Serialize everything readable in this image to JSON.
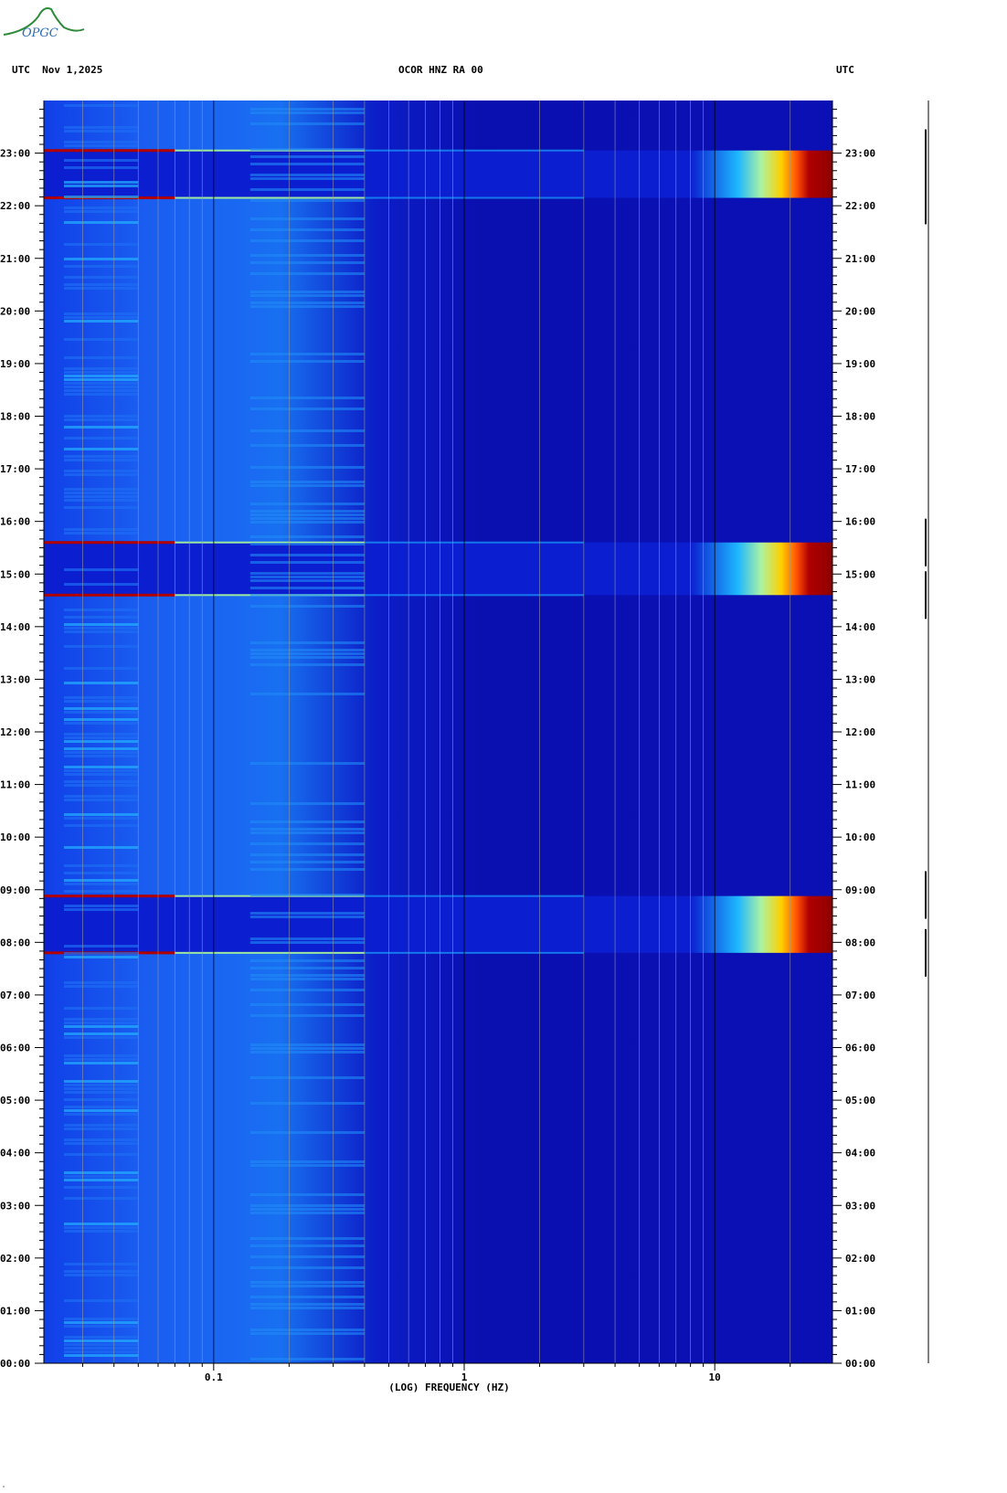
{
  "header": {
    "left_label": "UTC  Nov 1,2025",
    "center_label": "OCOR HNZ RA 00",
    "right_label": "UTC"
  },
  "logo": {
    "text": "OPGC",
    "icon": "volcano-logo-icon"
  },
  "footer_mark": "ᵃ",
  "chart_data": {
    "type": "heatmap",
    "title": "OCOR HNZ RA 00",
    "xlabel": "(LOG) FREQUENCY (HZ)",
    "ylabel": "UTC",
    "x_scale": "log",
    "x_range_hz": [
      0.021,
      29.5
    ],
    "x_tick_labels": [
      {
        "value": 0.1,
        "label": "0.1"
      },
      {
        "value": 1,
        "label": "1"
      },
      {
        "value": 10,
        "label": "10"
      }
    ],
    "y_range_hours": [
      0,
      24
    ],
    "y_tick_labels": [
      "00:00",
      "01:00",
      "02:00",
      "03:00",
      "04:00",
      "05:00",
      "06:00",
      "07:00",
      "08:00",
      "09:00",
      "10:00",
      "11:00",
      "12:00",
      "13:00",
      "14:00",
      "15:00",
      "16:00",
      "17:00",
      "18:00",
      "19:00",
      "20:00",
      "21:00",
      "22:00",
      "23:00"
    ],
    "grid": true,
    "colormap": [
      "#00008f",
      "#0000ff",
      "#00ffff",
      "#ffff00",
      "#ff0000",
      "#800000"
    ],
    "background_level": "dark-blue",
    "events": [
      {
        "start_hour": 7.8,
        "end_hour": 8.88,
        "peak_freq_hz": 20,
        "level": "high"
      },
      {
        "start_hour": 14.6,
        "end_hour": 15.6,
        "peak_freq_hz": 20,
        "level": "high"
      },
      {
        "start_hour": 22.15,
        "end_hour": 23.05,
        "peak_freq_hz": 20,
        "level": "high"
      }
    ],
    "edge_lines_hours": [
      7.8,
      8.88,
      14.6,
      15.6,
      22.15,
      23.05
    ],
    "right_trace_marks_hours": [
      7.8,
      8.9,
      14.6,
      15.6,
      22.1,
      23.0
    ]
  },
  "colors": {
    "background": "#ffffff",
    "spectrogram_base": "#0a0aa8",
    "grid_line": "#9a9a9a"
  }
}
